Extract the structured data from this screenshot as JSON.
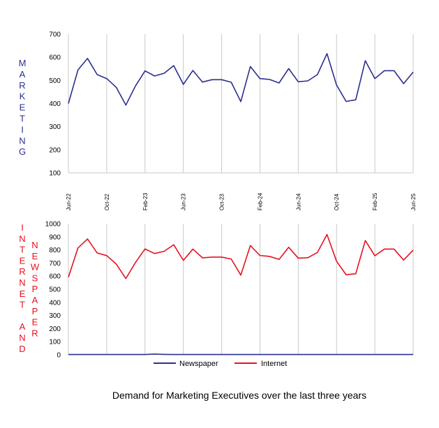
{
  "title": "Demand for Marketing Executives over the last three years",
  "colors": {
    "marketing": "#2B2F8F",
    "internet": "#E8101E",
    "newspaper": "#2B2F8F",
    "grid": "#C8C8C8"
  },
  "x_labels": [
    "Jun-22",
    "Oct-22",
    "Feb-23",
    "Jun-23",
    "Oct-23",
    "Feb-24",
    "Jun-24",
    "Oct-24",
    "Feb-25",
    "Jun-25"
  ],
  "chart_data": [
    {
      "type": "line",
      "panel": "top",
      "ylabel": "MARKETING",
      "ylim": [
        100,
        700
      ],
      "yticks": [
        100,
        200,
        300,
        400,
        500,
        600,
        700
      ],
      "grid": "vertical",
      "series": [
        {
          "name": "Marketing",
          "values": [
            400,
            545,
            595,
            525,
            508,
            470,
            393,
            476,
            541,
            519,
            531,
            564,
            483,
            543,
            493,
            503,
            503,
            492,
            408,
            560,
            508,
            504,
            489,
            551,
            494,
            498,
            525,
            616,
            480,
            409,
            416,
            585,
            508,
            542,
            542,
            486,
            536
          ]
        }
      ]
    },
    {
      "type": "line",
      "panel": "bottom",
      "ylabel": "INTERNET AND NEWSPAPER",
      "ylim": [
        0,
        1000
      ],
      "yticks": [
        0,
        100,
        200,
        300,
        400,
        500,
        600,
        700,
        800,
        900,
        1000
      ],
      "grid": "vertical",
      "legend": "bottom",
      "series": [
        {
          "name": "Newspaper",
          "values": [
            2,
            2,
            2,
            2,
            2,
            2,
            2,
            2,
            2,
            6,
            3,
            2,
            2,
            2,
            2,
            2,
            2,
            2,
            2,
            2,
            2,
            2,
            2,
            2,
            2,
            2,
            2,
            2,
            2,
            2,
            2,
            2,
            2,
            2,
            2,
            2,
            2
          ]
        },
        {
          "name": "Internet",
          "values": [
            592,
            815,
            884,
            777,
            757,
            692,
            582,
            704,
            808,
            773,
            790,
            840,
            721,
            807,
            740,
            746,
            746,
            731,
            608,
            834,
            758,
            751,
            728,
            821,
            738,
            741,
            781,
            918,
            714,
            611,
            618,
            872,
            756,
            807,
            807,
            723,
            799
          ]
        }
      ]
    }
  ],
  "vertical_labels": {
    "marketing": [
      "M",
      "A",
      "R",
      "K",
      "E",
      "T",
      "I",
      "N",
      "G"
    ],
    "internet": [
      "I",
      "N",
      "T",
      "E",
      "R",
      "N",
      "E",
      "T",
      "",
      "A",
      "N",
      "D"
    ],
    "newspaper": [
      "N",
      "E",
      "W",
      "S",
      "P",
      "A",
      "P",
      "E",
      "R"
    ]
  }
}
